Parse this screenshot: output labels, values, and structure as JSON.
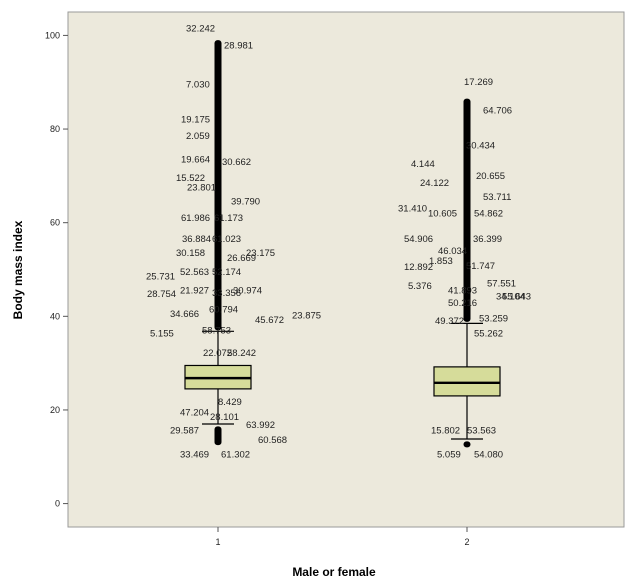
{
  "chart_data": {
    "type": "boxplot",
    "xlabel": "Male or female",
    "ylabel": "Body mass index",
    "ylim": [
      -5,
      105
    ],
    "yticks": [
      0,
      20,
      40,
      60,
      80,
      100
    ],
    "categories": [
      "1",
      "2"
    ],
    "grid": false,
    "colors": {
      "plot_bg": "#ece9dc",
      "box_fill": "#d6dc9a",
      "stroke": "#000000"
    },
    "boxes": [
      {
        "category": "1",
        "whisker_low": 17,
        "q1": 24.5,
        "median": 26.8,
        "q3": 29.5,
        "whisker_high": 36.8,
        "outlier_range_low": [
          12.5,
          16.5
        ],
        "outlier_range_high": [
          37,
          99
        ],
        "outliers": [
          {
            "label": "32.242",
            "y": 101.5
          },
          {
            "label": "28.981",
            "y": 97.8
          },
          {
            "label": "7.030",
            "y": 89.5
          },
          {
            "label": "19.175",
            "y": 82
          },
          {
            "label": "2.059",
            "y": 78.5
          },
          {
            "label": "19.664",
            "y": 73.5
          },
          {
            "label": "30.662",
            "y": 73
          },
          {
            "label": "15.522",
            "y": 69.5
          },
          {
            "label": "23.801",
            "y": 67.5
          },
          {
            "label": "39.790",
            "y": 64.5
          },
          {
            "label": "61.986",
            "y": 61
          },
          {
            "label": "61.173",
            "y": 61
          },
          {
            "label": "36.884",
            "y": 56.5
          },
          {
            "label": "61.023",
            "y": 56.5
          },
          {
            "label": "30.158",
            "y": 53.5
          },
          {
            "label": "26.669",
            "y": 52.5
          },
          {
            "label": "23.175",
            "y": 53.5
          },
          {
            "label": "25.731",
            "y": 48.5
          },
          {
            "label": "52.563",
            "y": 49.5
          },
          {
            "label": "52.174",
            "y": 49.5
          },
          {
            "label": "28.754",
            "y": 44.8
          },
          {
            "label": "21.927",
            "y": 45.5
          },
          {
            "label": "33.356",
            "y": 45
          },
          {
            "label": "30.974",
            "y": 45.5
          },
          {
            "label": "34.666",
            "y": 40.5
          },
          {
            "label": "60.794",
            "y": 41.5
          },
          {
            "label": "5.155",
            "y": 36.3
          },
          {
            "label": "58.753",
            "y": 37
          },
          {
            "label": "45.672",
            "y": 39.2
          },
          {
            "label": "23.875",
            "y": 40.2
          },
          {
            "label": "22.072",
            "y": 32.2
          },
          {
            "label": "58.242",
            "y": 32.2
          },
          {
            "label": "8.429",
            "y": 21.7
          },
          {
            "label": "47.204",
            "y": 19.5
          },
          {
            "label": "28.101",
            "y": 18.5
          },
          {
            "label": "29.587",
            "y": 15.6
          },
          {
            "label": "63.992",
            "y": 16.8
          },
          {
            "label": "60.568",
            "y": 13.6
          },
          {
            "label": "33.469",
            "y": 10.5
          },
          {
            "label": "61.302",
            "y": 10.5
          }
        ]
      },
      {
        "category": "2",
        "whisker_low": 13.8,
        "q1": 23,
        "median": 25.8,
        "q3": 29.2,
        "whisker_high": 38.5,
        "outlier_range_low": [
          12,
          13.3
        ],
        "outlier_range_high": [
          38.8,
          86.5
        ],
        "outliers": [
          {
            "label": "17.269",
            "y": 90
          },
          {
            "label": "64.706",
            "y": 84
          },
          {
            "label": "30.434",
            "y": 76.5
          },
          {
            "label": "4.144",
            "y": 72.5
          },
          {
            "label": "20.655",
            "y": 70
          },
          {
            "label": "24.122",
            "y": 68.5
          },
          {
            "label": "53.711",
            "y": 65.5
          },
          {
            "label": "31.410",
            "y": 63
          },
          {
            "label": "10.605",
            "y": 62
          },
          {
            "label": "54.862",
            "y": 62
          },
          {
            "label": "54.906",
            "y": 56.5
          },
          {
            "label": "36.399",
            "y": 56.5
          },
          {
            "label": "46.034",
            "y": 54
          },
          {
            "label": "1.853",
            "y": 51.8
          },
          {
            "label": "12.892",
            "y": 50.5
          },
          {
            "label": "51.747",
            "y": 50.8
          },
          {
            "label": "57.551",
            "y": 47
          },
          {
            "label": "5.376",
            "y": 46.5
          },
          {
            "label": "41.893",
            "y": 45.5
          },
          {
            "label": "34.104",
            "y": 44.2
          },
          {
            "label": "55.643",
            "y": 44.2
          },
          {
            "label": "50.216",
            "y": 42.8
          },
          {
            "label": "53.259",
            "y": 39.5
          },
          {
            "label": "49.372",
            "y": 39
          },
          {
            "label": "55.262",
            "y": 36.3
          },
          {
            "label": "15.802",
            "y": 15.6
          },
          {
            "label": "53.563",
            "y": 15.6
          },
          {
            "label": "5.059",
            "y": 10.5
          },
          {
            "label": "54.080",
            "y": 10.5
          }
        ]
      }
    ]
  },
  "x_tick_labels": [
    "1",
    "2"
  ]
}
